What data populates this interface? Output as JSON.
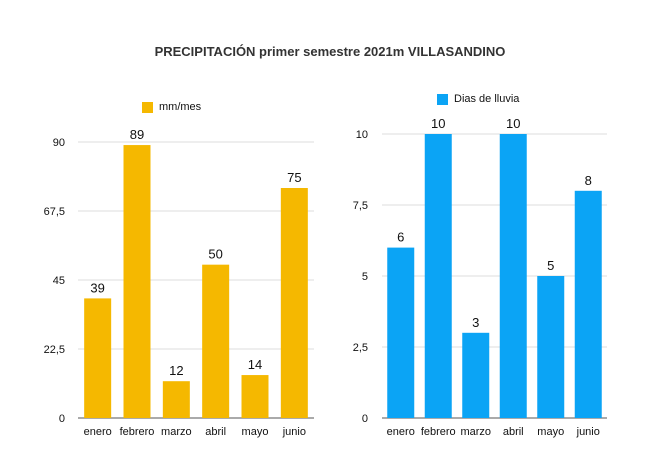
{
  "title": "PRECIPITACIÓN primer semestre 2021m VILLASANDINO",
  "chart_data": [
    {
      "type": "bar",
      "categories": [
        "enero",
        "febrero",
        "marzo",
        "abril",
        "mayo",
        "junio"
      ],
      "series": [
        {
          "name": "mm/mes",
          "values": [
            39,
            89,
            12,
            50,
            14,
            75
          ]
        }
      ],
      "color": "#F5B800",
      "yticks": [
        "0",
        "22,5",
        "45",
        "67,5",
        "90"
      ],
      "ytick_values": [
        0,
        22.5,
        45,
        67.5,
        90
      ],
      "ylim": [
        0,
        90
      ],
      "data_labels": [
        "39",
        "89",
        "12",
        "50",
        "14",
        "75"
      ],
      "legend": "top",
      "grid": true
    },
    {
      "type": "bar",
      "categories": [
        "enero",
        "febrero",
        "marzo",
        "abril",
        "mayo",
        "junio"
      ],
      "series": [
        {
          "name": "Dias de lluvia",
          "values": [
            6,
            10,
            3,
            10,
            5,
            8
          ]
        }
      ],
      "color": "#0BA4F5",
      "yticks": [
        "0",
        "2,5",
        "5",
        "7,5",
        "10"
      ],
      "ytick_values": [
        0,
        2.5,
        5,
        7.5,
        10
      ],
      "ylim": [
        0,
        10
      ],
      "data_labels": [
        "6",
        "10",
        "3",
        "10",
        "5",
        "8"
      ],
      "legend": "top",
      "grid": true
    }
  ]
}
